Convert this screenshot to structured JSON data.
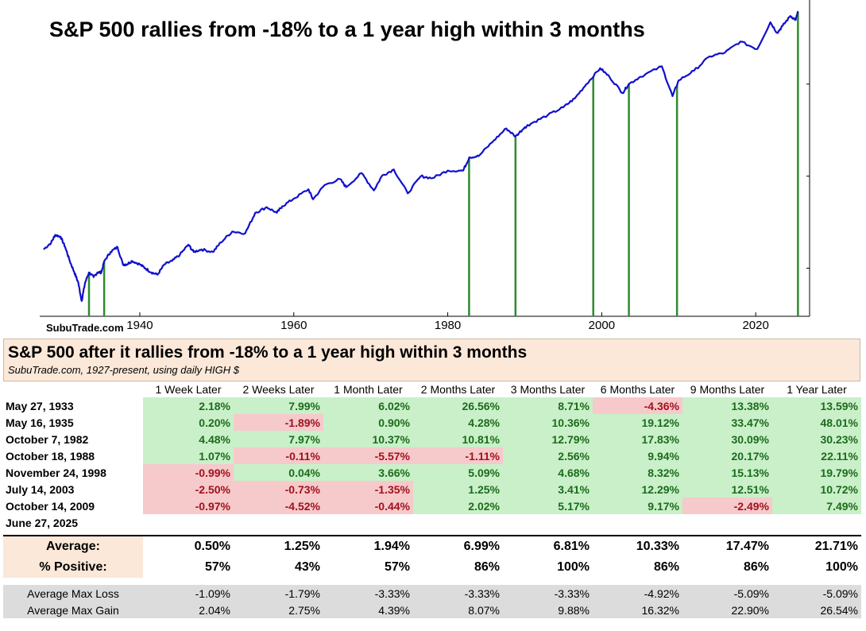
{
  "chart": {
    "title": "S&P 500 rallies from -18% to a 1 year high within 3 months",
    "watermark": "SubuTrade.com",
    "line_color": "#1010cc",
    "marker_color": "#2f8a2f"
  },
  "chart_data": {
    "type": "line",
    "title": "S&P 500 rallies from -18% to a 1 year high within 3 months",
    "yscale": "log",
    "xlim": [
      1927,
      2027
    ],
    "ylim": [
      3,
      7000
    ],
    "xticks": [
      "1940",
      "1960",
      "1980",
      "2000",
      "2020"
    ],
    "series": [
      {
        "x": [
          1927.5,
          1928.5,
          1929.0,
          1929.7,
          1930.3,
          1930.9,
          1931.5,
          1932.0,
          1932.45,
          1932.9,
          1933.4,
          1934.0,
          1934.5,
          1935.0,
          1935.4,
          1936.2,
          1937.1,
          1937.8,
          1938.3,
          1939.0,
          1940.0,
          1940.7,
          1941.5,
          1942.3,
          1943.2,
          1944.2,
          1945.2,
          1946.3,
          1947.0,
          1948.0,
          1949.5,
          1950.5,
          1952.0,
          1953.7,
          1955.0,
          1956.5,
          1957.8,
          1958.5,
          1960.0,
          1961.9,
          1962.5,
          1964.0,
          1966.0,
          1966.8,
          1968.8,
          1970.4,
          1971.5,
          1973.0,
          1974.8,
          1976.5,
          1978.0,
          1980.0,
          1982.0,
          1982.8,
          1984.0,
          1986.0,
          1987.6,
          1988.8,
          1990.0,
          1991.0,
          1993.0,
          1995.0,
          1996.5,
          1998.0,
          1999.8,
          2001.0,
          2002.7,
          2003.5,
          2005.0,
          2007.8,
          2009.2,
          2010.0,
          2012.0,
          2014.0,
          2016.0,
          2018.0,
          2020.2,
          2021.9,
          2022.8,
          2023.5,
          2024.5,
          2025.2,
          2025.5
        ],
        "y": [
          16,
          19,
          23,
          22,
          17,
          12,
          9,
          7,
          4.4,
          7,
          9,
          8,
          9,
          9,
          12,
          15,
          17,
          11,
          11,
          12,
          11,
          10,
          9,
          8.5,
          11,
          12,
          14,
          18,
          15,
          16,
          15,
          19,
          25,
          24,
          40,
          46,
          40,
          47,
          57,
          72,
          56,
          80,
          93,
          76,
          108,
          70,
          102,
          118,
          65,
          100,
          95,
          115,
          115,
          160,
          165,
          245,
          330,
          270,
          340,
          380,
          460,
          560,
          700,
          1000,
          1490,
          1200,
          800,
          1000,
          1200,
          1560,
          740,
          1100,
          1400,
          2000,
          2200,
          2900,
          2400,
          4700,
          3600,
          4300,
          5500,
          5000,
          6200
        ]
      }
    ],
    "markers_x": [
      1933.4,
      1935.37,
      1982.77,
      1988.8,
      1998.9,
      2003.53,
      2009.78,
      2025.49
    ]
  },
  "table": {
    "title": "S&P 500 after it rallies from -18% to a 1 year high within 3 months",
    "subtitle": "SubuTrade.com, 1927-present, using daily HIGH $",
    "columns": [
      "1 Week Later",
      "2 Weeks Later",
      "1 Month Later",
      "2 Months Later",
      "3 Months Later",
      "6 Months Later",
      "9 Months Later",
      "1 Year Later"
    ],
    "rows": [
      {
        "date": "May 27, 1933",
        "values": [
          "2.18%",
          "7.99%",
          "6.02%",
          "26.56%",
          "8.71%",
          "-4.36%",
          "13.38%",
          "13.59%"
        ]
      },
      {
        "date": "May 16, 1935",
        "values": [
          "0.20%",
          "-1.89%",
          "0.90%",
          "4.28%",
          "10.36%",
          "19.12%",
          "33.47%",
          "48.01%"
        ]
      },
      {
        "date": "October 7, 1982",
        "values": [
          "4.48%",
          "7.97%",
          "10.37%",
          "10.81%",
          "12.79%",
          "17.83%",
          "30.09%",
          "30.23%"
        ]
      },
      {
        "date": "October 18, 1988",
        "values": [
          "1.07%",
          "-0.11%",
          "-5.57%",
          "-1.11%",
          "2.56%",
          "9.94%",
          "20.17%",
          "22.11%"
        ]
      },
      {
        "date": "November 24, 1998",
        "values": [
          "-0.99%",
          "0.04%",
          "3.66%",
          "5.09%",
          "4.68%",
          "8.32%",
          "15.13%",
          "19.79%"
        ]
      },
      {
        "date": "July 14, 2003",
        "values": [
          "-2.50%",
          "-0.73%",
          "-1.35%",
          "1.25%",
          "3.41%",
          "12.29%",
          "12.51%",
          "10.72%"
        ]
      },
      {
        "date": "October 14, 2009",
        "values": [
          "-0.97%",
          "-4.52%",
          "-0.44%",
          "2.02%",
          "5.17%",
          "9.17%",
          "-2.49%",
          "7.49%"
        ]
      },
      {
        "date": "June 27, 2025",
        "values": [
          "",
          "",
          "",
          "",
          "",
          "",
          "",
          ""
        ]
      }
    ],
    "summary": [
      {
        "label": "Average:",
        "values": [
          "0.50%",
          "1.25%",
          "1.94%",
          "6.99%",
          "6.81%",
          "10.33%",
          "17.47%",
          "21.71%"
        ]
      },
      {
        "label": "% Positive:",
        "values": [
          "57%",
          "43%",
          "57%",
          "86%",
          "100%",
          "86%",
          "86%",
          "100%"
        ]
      }
    ],
    "maxstats": [
      {
        "label": "Average Max Loss",
        "values": [
          "-1.09%",
          "-1.79%",
          "-3.33%",
          "-3.33%",
          "-3.33%",
          "-4.92%",
          "-5.09%",
          "-5.09%"
        ]
      },
      {
        "label": "Average Max Gain",
        "values": [
          "2.04%",
          "2.75%",
          "4.39%",
          "8.07%",
          "9.88%",
          "16.32%",
          "22.90%",
          "26.54%"
        ]
      }
    ]
  }
}
